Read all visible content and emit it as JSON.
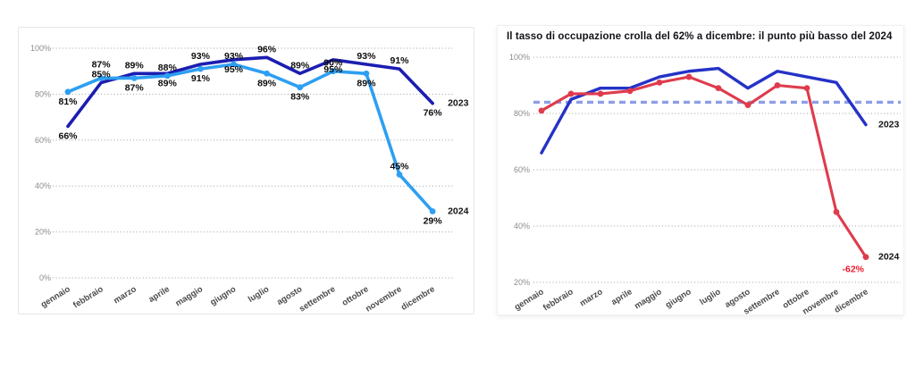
{
  "page": {
    "background": "#ffffff"
  },
  "months": [
    "gennaio",
    "febbraio",
    "marzo",
    "aprile",
    "maggio",
    "giugno",
    "luglio",
    "agosto",
    "settembre",
    "ottobre",
    "novembre",
    "dicembre"
  ],
  "chart_data": [
    {
      "type": "line",
      "title": "",
      "categories": [
        "gennaio",
        "febbraio",
        "marzo",
        "aprile",
        "maggio",
        "giugno",
        "luglio",
        "agosto",
        "settembre",
        "ottobre",
        "novembre",
        "dicembre"
      ],
      "ylim": [
        0,
        100
      ],
      "yticks": [
        0,
        20,
        40,
        60,
        80,
        100
      ],
      "ytick_suffix": "%",
      "grid": "dotted-horizontal",
      "legend_position": "line-end-labels",
      "series": [
        {
          "name": "2023",
          "color": "#1b1db1",
          "dots": false,
          "width": 3.6,
          "show_labels": true,
          "label_side": [
            "b",
            "a",
            "a",
            "b",
            "a",
            "b",
            "a",
            "a",
            "b",
            "a",
            "a",
            "b"
          ],
          "values": [
            66,
            85,
            89,
            89,
            93,
            95,
            96,
            89,
            95,
            93,
            91,
            76
          ]
        },
        {
          "name": "2024",
          "color": "#2e9ff2",
          "dots": true,
          "width": 3.6,
          "show_labels": true,
          "label_side": [
            "b",
            "a",
            "b",
            "a",
            "b",
            "a",
            "b",
            "b",
            "a",
            "b",
            "a",
            "b"
          ],
          "values": [
            81,
            87,
            87,
            88,
            91,
            93,
            89,
            83,
            90,
            89,
            45,
            29
          ]
        }
      ]
    },
    {
      "type": "line",
      "title": "Il tasso di occupazione crolla del 62% a dicembre: il punto più basso del 2024",
      "categories": [
        "gennaio",
        "febbraio",
        "marzo",
        "aprile",
        "maggio",
        "giugno",
        "luglio",
        "agosto",
        "settembre",
        "ottobre",
        "novembre",
        "dicembre"
      ],
      "ylim": [
        20,
        100
      ],
      "yticks": [
        20,
        40,
        60,
        80,
        100
      ],
      "ytick_suffix": "%",
      "grid": "dotted-horizontal",
      "legend_position": "line-end-labels",
      "ref_line": {
        "value": 84,
        "style": "dashed",
        "color": "#8d9ee7"
      },
      "series": [
        {
          "name": "2023",
          "color": "#2432c6",
          "dots": false,
          "width": 3.4,
          "show_labels": false,
          "values": [
            66,
            85,
            89,
            89,
            93,
            95,
            96,
            89,
            95,
            93,
            91,
            76
          ]
        },
        {
          "name": "2024",
          "color": "#df3b4c",
          "dots": true,
          "width": 3.1,
          "show_labels": false,
          "values": [
            81,
            87,
            87,
            88,
            91,
            93,
            89,
            83,
            90,
            89,
            45,
            29
          ]
        }
      ],
      "annotations": [
        {
          "text": "-62%",
          "color": "#ed1b2c",
          "month_index": 11,
          "series_index": 1,
          "position": "below"
        }
      ]
    }
  ]
}
